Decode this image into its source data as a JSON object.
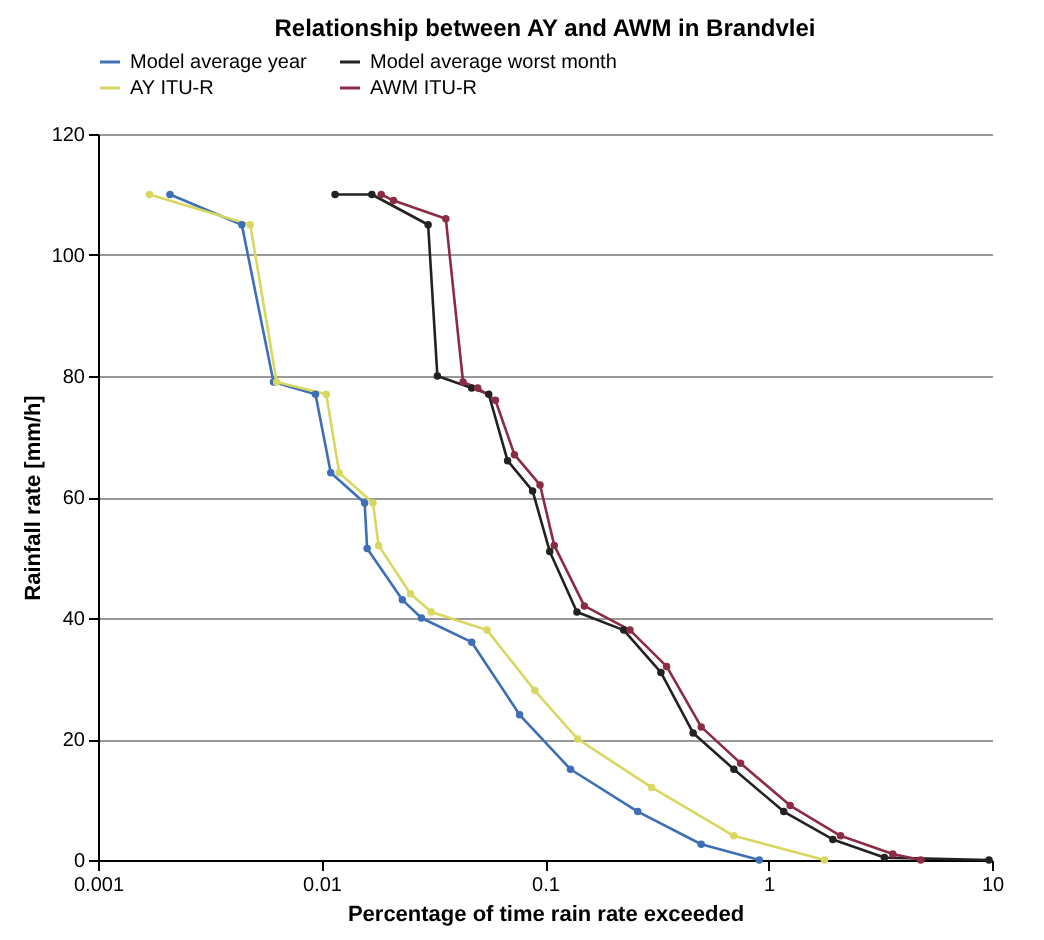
{
  "chart_data": {
    "type": "line",
    "title": "Relationship between AY and AWM in Brandvlei",
    "xlabel": "Percentage of time rain rate exceeded",
    "ylabel": "Rainfall rate [mm/h]",
    "log": "x",
    "xlim": [
      0.001,
      10
    ],
    "xticks": [
      0.001,
      0.01,
      0.1,
      1,
      10
    ],
    "ylim": [
      0,
      120
    ],
    "yticks": [
      0,
      20,
      40,
      60,
      80,
      100,
      120
    ],
    "grid": "y",
    "legend": "top",
    "marker": "circle",
    "series": [
      {
        "name": "Model  average year",
        "color": "#3d6fb6",
        "x": [
          0.0021,
          0.0044,
          0.0061,
          0.0094,
          0.011,
          0.0156,
          0.016,
          0.023,
          0.028,
          0.047,
          0.077,
          0.13,
          0.26,
          0.5,
          0.91
        ],
        "values": [
          110,
          105,
          79,
          77,
          64,
          59,
          51.5,
          43,
          40,
          36,
          24,
          15,
          8,
          2.6,
          0
        ]
      },
      {
        "name": "Model  average worst month",
        "color": "#222222",
        "x": [
          0.0115,
          0.0168,
          0.03,
          0.033,
          0.047,
          0.056,
          0.068,
          0.088,
          0.105,
          0.139,
          0.225,
          0.33,
          0.46,
          0.7,
          1.17,
          1.94,
          3.3,
          9.7
        ],
        "values": [
          110,
          110,
          105,
          80,
          78,
          77,
          66,
          61,
          51,
          41,
          38,
          31,
          21,
          15,
          8,
          3.4,
          0.4,
          0
        ]
      },
      {
        "name": "AY ITU-R",
        "color": "#d8d860",
        "x": [
          0.0017,
          0.0048,
          0.0063,
          0.0105,
          0.012,
          0.017,
          0.018,
          0.025,
          0.031,
          0.055,
          0.09,
          0.14,
          0.3,
          0.7,
          1.78
        ],
        "values": [
          110,
          105,
          79,
          77,
          64,
          59,
          52,
          44,
          41,
          38,
          28,
          20,
          12,
          4,
          0
        ]
      },
      {
        "name": "AWM ITU-R",
        "color": "#8c2c44",
        "x": [
          0.0185,
          0.021,
          0.036,
          0.043,
          0.05,
          0.06,
          0.073,
          0.095,
          0.11,
          0.15,
          0.24,
          0.35,
          0.5,
          0.75,
          1.25,
          2.1,
          3.6,
          4.8
        ],
        "values": [
          110,
          109,
          106,
          79,
          78,
          76,
          67,
          62,
          52,
          42,
          38,
          32,
          22,
          16,
          9,
          4,
          1,
          0
        ]
      }
    ]
  }
}
